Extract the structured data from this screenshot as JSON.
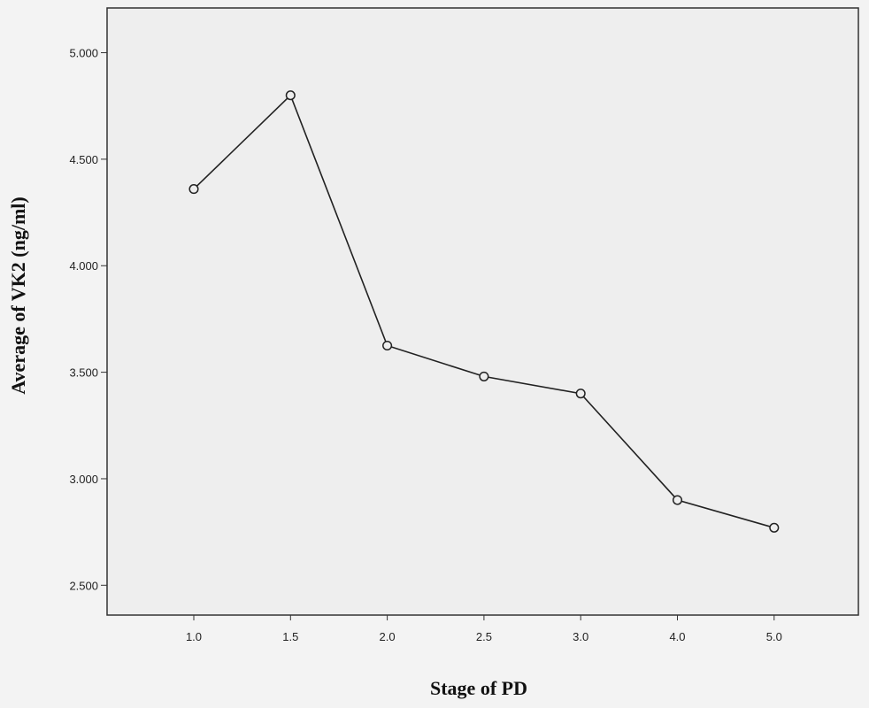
{
  "chart_data": {
    "type": "line",
    "title": "",
    "xlabel": "Stage of PD",
    "ylabel": "Average of VK2 (ng/ml)",
    "categories": [
      "1.0",
      "1.5",
      "2.0",
      "2.5",
      "3.0",
      "4.0",
      "5.0"
    ],
    "values": [
      4.36,
      4.8,
      3.625,
      3.48,
      3.4,
      2.9,
      2.77
    ],
    "y_ticks": [
      "2.500",
      "3.000",
      "3.500",
      "4.000",
      "4.500",
      "5.000"
    ],
    "ylim": [
      2.36,
      5.21
    ],
    "grid": false,
    "marker": "circle",
    "line_color": "#222222",
    "plot_background": "#eeeeee"
  }
}
